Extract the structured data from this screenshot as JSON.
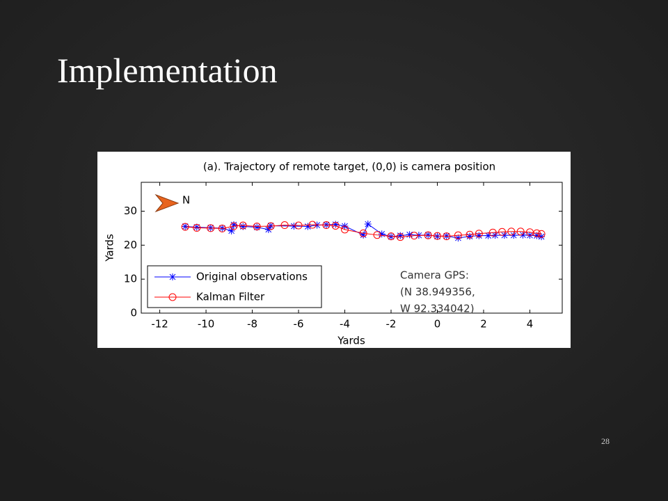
{
  "slide": {
    "title": "Implementation",
    "page_number": "28"
  },
  "chart_data": {
    "type": "line",
    "title": "(a). Trajectory of remote target, (0,0) is camera position",
    "x_label": "Yards",
    "y_label": "Yards",
    "xlim": [
      -12.8,
      5.4
    ],
    "xticks": [
      -12,
      -10,
      -8,
      -6,
      -4,
      -2,
      0,
      2,
      4
    ],
    "ylim": [
      0,
      38.5
    ],
    "yticks": [
      0,
      10,
      20,
      30
    ],
    "grid": false,
    "legend": "lower left",
    "annotations": [
      "N",
      "Camera GPS:",
      "(N 38.949356,",
      "W 92.334042)"
    ],
    "series": [
      {
        "name": "Original observations",
        "color": "#0000ff",
        "marker": "star",
        "x": [
          -10.9,
          -10.4,
          -9.8,
          -9.3,
          -8.9,
          -8.8,
          -8.4,
          -7.8,
          -7.3,
          -7.2,
          -6.2,
          -5.6,
          -5.2,
          -4.8,
          -4.4,
          -4.0,
          -3.2,
          -3.0,
          -2.4,
          -2.0,
          -1.6,
          -1.2,
          -0.8,
          -0.4,
          0,
          0.4,
          0.9,
          1.4,
          1.8,
          2.2,
          2.5,
          2.9,
          3.3,
          3.7,
          4.0,
          4.3,
          4.5
        ],
        "values": [
          25.5,
          25.3,
          25.1,
          25.0,
          24.2,
          26.0,
          25.5,
          25.3,
          24.6,
          25.7,
          25.6,
          25.5,
          25.9,
          26.0,
          26.1,
          25.6,
          23.0,
          26.2,
          23.3,
          22.5,
          22.8,
          23.1,
          22.9,
          23.0,
          22.6,
          22.7,
          22.1,
          22.6,
          22.8,
          22.8,
          22.9,
          22.9,
          22.9,
          23.0,
          22.9,
          22.8,
          22.5
        ]
      },
      {
        "name": "Kalman Filter",
        "color": "#ff0000",
        "marker": "circle",
        "x": [
          -10.9,
          -10.4,
          -9.8,
          -9.3,
          -8.8,
          -8.4,
          -7.8,
          -7.2,
          -6.6,
          -6.0,
          -5.4,
          -4.8,
          -4.4,
          -4.0,
          -3.2,
          -2.6,
          -2.0,
          -1.6,
          -1.0,
          -0.4,
          0,
          0.4,
          0.9,
          1.4,
          1.8,
          2.4,
          2.8,
          3.2,
          3.6,
          4.0,
          4.3,
          4.5
        ],
        "values": [
          25.4,
          25.1,
          25.0,
          24.9,
          25.6,
          25.8,
          25.5,
          25.6,
          25.9,
          25.8,
          26.0,
          25.9,
          25.7,
          24.6,
          23.5,
          23.0,
          22.6,
          22.4,
          22.8,
          22.9,
          22.7,
          22.6,
          22.9,
          23.1,
          23.4,
          23.7,
          23.9,
          24.0,
          24.0,
          23.8,
          23.5,
          23.3
        ]
      }
    ]
  }
}
